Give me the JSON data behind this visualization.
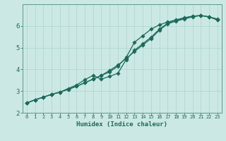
{
  "xlabel": "Humidex (Indice chaleur)",
  "bg_color": "#cce8e4",
  "line_color": "#1a6b5a",
  "xlim": [
    -0.5,
    23.5
  ],
  "ylim": [
    2.0,
    7.0
  ],
  "yticks": [
    2,
    3,
    4,
    5,
    6
  ],
  "xticks": [
    0,
    1,
    2,
    3,
    4,
    5,
    6,
    7,
    8,
    9,
    10,
    11,
    12,
    13,
    14,
    15,
    16,
    17,
    18,
    19,
    20,
    21,
    22,
    23
  ],
  "line1_x": [
    0,
    1,
    2,
    3,
    4,
    5,
    6,
    7,
    8,
    9,
    10,
    11,
    12,
    13,
    14,
    15,
    16,
    17,
    18,
    19,
    20,
    21,
    22,
    23
  ],
  "line1_y": [
    2.45,
    2.6,
    2.72,
    2.85,
    2.95,
    3.08,
    3.22,
    3.38,
    3.55,
    3.72,
    3.95,
    4.2,
    4.5,
    4.82,
    5.12,
    5.42,
    5.8,
    6.1,
    6.22,
    6.32,
    6.42,
    6.48,
    6.42,
    6.32
  ],
  "line2_x": [
    0,
    1,
    2,
    3,
    4,
    5,
    6,
    7,
    8,
    9,
    10,
    11,
    12,
    13,
    14,
    15,
    16,
    17,
    18,
    19,
    20,
    21,
    22,
    23
  ],
  "line2_y": [
    2.45,
    2.6,
    2.72,
    2.85,
    2.95,
    3.08,
    3.22,
    3.38,
    3.55,
    3.72,
    3.88,
    4.15,
    4.55,
    5.25,
    5.55,
    5.85,
    6.05,
    6.18,
    6.28,
    6.38,
    6.45,
    6.48,
    6.42,
    6.28
  ],
  "line3_x": [
    0,
    1,
    2,
    3,
    4,
    5,
    6,
    7,
    8,
    9,
    10,
    11,
    12,
    13,
    14,
    15,
    16,
    17,
    18,
    19,
    20,
    21,
    22,
    23
  ],
  "line3_y": [
    2.45,
    2.6,
    2.72,
    2.85,
    2.95,
    3.12,
    3.28,
    3.52,
    3.72,
    3.55,
    3.68,
    3.82,
    4.45,
    4.88,
    5.18,
    5.48,
    5.85,
    6.12,
    6.25,
    6.35,
    6.45,
    6.48,
    6.42,
    6.28
  ],
  "grid_color": "#aad4ce",
  "font_color": "#1a6b5a",
  "spine_color": "#5a9a8a",
  "linewidth": 0.9,
  "markersize": 2.8,
  "xlabel_fontsize": 6.5,
  "tick_fontsize_x": 5.0,
  "tick_fontsize_y": 6.5
}
